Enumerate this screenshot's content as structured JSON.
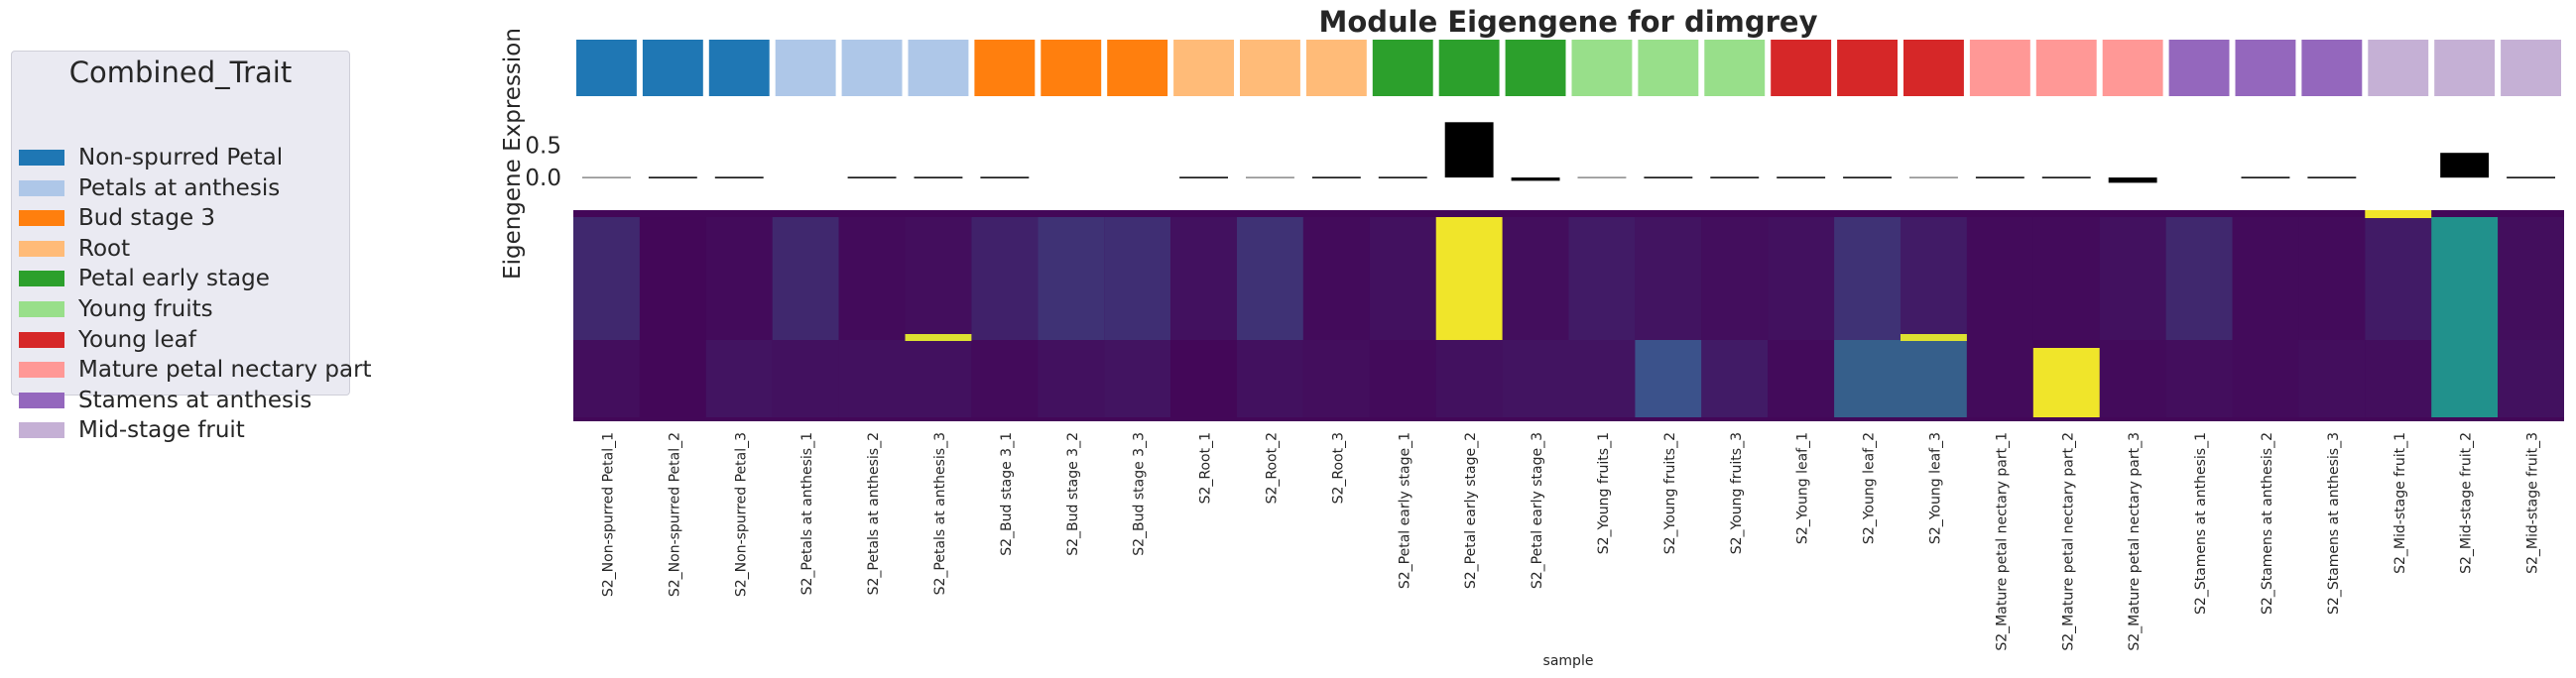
{
  "chart_data": {
    "type": "heatmap",
    "title": "Module Eigengene for dimgrey",
    "ylabel": "Eigengene Expression",
    "xlabel": "sample",
    "bar_yticks": [
      "0.5",
      "0.0"
    ],
    "bar_ylim": [
      -0.12,
      0.9
    ],
    "legend": {
      "title": "Combined_Trait",
      "placement": "left",
      "entries": [
        {
          "label": "Non-spurred Petal",
          "color": "#1f77b4"
        },
        {
          "label": "Petals at anthesis",
          "color": "#aec7e8"
        },
        {
          "label": "Bud stage 3",
          "color": "#ff7f0e"
        },
        {
          "label": "Root",
          "color": "#ffbb78"
        },
        {
          "label": "Petal early stage",
          "color": "#2ca02c"
        },
        {
          "label": "Young fruits",
          "color": "#98df8a"
        },
        {
          "label": "Young leaf",
          "color": "#d62728"
        },
        {
          "label": "Mature petal nectary part",
          "color": "#ff9896"
        },
        {
          "label": "Stamens at anthesis",
          "color": "#9467bd"
        },
        {
          "label": "Mid-stage fruit",
          "color": "#c5b0d5"
        }
      ]
    },
    "samples": [
      {
        "name": "S2_Non-spurred Petal_1",
        "group": 0,
        "eigengene": 0.0
      },
      {
        "name": "S2_Non-spurred Petal_2",
        "group": 0,
        "eigengene": -0.02
      },
      {
        "name": "S2_Non-spurred Petal_3",
        "group": 0,
        "eigengene": -0.02
      },
      {
        "name": "S2_Petals at anthesis_1",
        "group": 1,
        "eigengene": null
      },
      {
        "name": "S2_Petals at anthesis_2",
        "group": 1,
        "eigengene": -0.02
      },
      {
        "name": "S2_Petals at anthesis_3",
        "group": 1,
        "eigengene": -0.02
      },
      {
        "name": "S2_Bud stage 3_1",
        "group": 2,
        "eigengene": -0.01
      },
      {
        "name": "S2_Bud stage 3_2",
        "group": 2,
        "eigengene": null
      },
      {
        "name": "S2_Bud stage 3_3",
        "group": 2,
        "eigengene": null
      },
      {
        "name": "S2_Root_1",
        "group": 3,
        "eigengene": -0.01
      },
      {
        "name": "S2_Root_2",
        "group": 3,
        "eigengene": 0.0
      },
      {
        "name": "S2_Root_3",
        "group": 3,
        "eigengene": -0.02
      },
      {
        "name": "S2_Petal early stage_1",
        "group": 4,
        "eigengene": -0.01
      },
      {
        "name": "S2_Petal early stage_2",
        "group": 4,
        "eigengene": 0.85
      },
      {
        "name": "S2_Petal early stage_3",
        "group": 4,
        "eigengene": -0.05
      },
      {
        "name": "S2_Young fruits_1",
        "group": 5,
        "eigengene": 0.0
      },
      {
        "name": "S2_Young fruits_2",
        "group": 5,
        "eigengene": -0.02
      },
      {
        "name": "S2_Young fruits_3",
        "group": 5,
        "eigengene": -0.01
      },
      {
        "name": "S2_Young leaf_1",
        "group": 6,
        "eigengene": 0.02
      },
      {
        "name": "S2_Young leaf_2",
        "group": 6,
        "eigengene": -0.02
      },
      {
        "name": "S2_Young leaf_3",
        "group": 6,
        "eigengene": 0.0
      },
      {
        "name": "S2_Mature petal nectary part_1",
        "group": 7,
        "eigengene": -0.02
      },
      {
        "name": "S2_Mature petal nectary part_2",
        "group": 7,
        "eigengene": -0.02
      },
      {
        "name": "S2_Mature petal nectary part_3",
        "group": 7,
        "eigengene": -0.08
      },
      {
        "name": "S2_Stamens at anthesis_1",
        "group": 8,
        "eigengene": null
      },
      {
        "name": "S2_Stamens at anthesis_2",
        "group": 8,
        "eigengene": -0.02
      },
      {
        "name": "S2_Stamens at anthesis_3",
        "group": 8,
        "eigengene": -0.01
      },
      {
        "name": "S2_Mid-stage fruit_1",
        "group": 9,
        "eigengene": null
      },
      {
        "name": "S2_Mid-stage fruit_2",
        "group": 9,
        "eigengene": 0.38
      },
      {
        "name": "S2_Mid-stage fruit_3",
        "group": 9,
        "eigengene": -0.02
      }
    ],
    "heatmap": {
      "colormap": "viridis",
      "description_rows": "genes (rows) x samples (columns), scaled expression 0-1",
      "base_levels": [
        0.12,
        0.02,
        0.03,
        0.12,
        0.03,
        0.04,
        0.1,
        0.15,
        0.14,
        0.05,
        0.15,
        0.03,
        0.05,
        0.04,
        0.04,
        0.08,
        0.06,
        0.04,
        0.05,
        0.15,
        0.08,
        0.03,
        0.03,
        0.05,
        0.12,
        0.03,
        0.03,
        0.08,
        0.06,
        0.04
      ],
      "lower_levels": [
        0.04,
        0.02,
        0.06,
        0.05,
        0.05,
        0.05,
        0.03,
        0.05,
        0.06,
        0.02,
        0.05,
        0.04,
        0.03,
        0.05,
        0.06,
        0.06,
        0.25,
        0.08,
        0.03,
        0.3,
        0.3,
        0.03,
        0.02,
        0.95,
        0.04,
        0.03,
        0.04,
        0.04,
        0.5,
        0.05
      ],
      "high_blocks": [
        {
          "sample": 13,
          "value": 0.98,
          "segment": "upper"
        },
        {
          "sample": 22,
          "value": 0.98,
          "segment": "lower"
        },
        {
          "sample": 28,
          "value": 0.5,
          "segment": "upper"
        },
        {
          "sample": 27,
          "value": 0.98,
          "segment": "top-strip"
        },
        {
          "sample": 5,
          "value": 0.95,
          "segment": "divider"
        },
        {
          "sample": 20,
          "value": 0.95,
          "segment": "divider"
        }
      ]
    }
  }
}
